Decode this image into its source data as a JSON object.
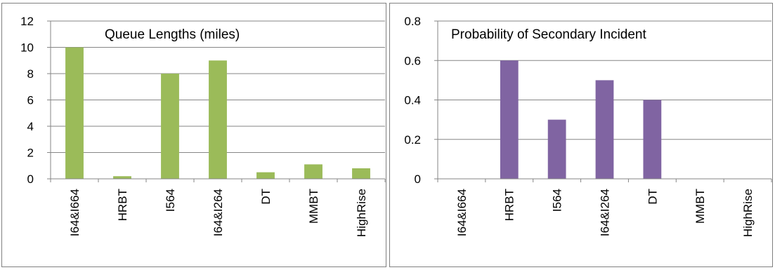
{
  "chart_data": [
    {
      "type": "bar",
      "title": "Queue Lengths (miles)",
      "categories": [
        "I64&I664",
        "HRBT",
        "I564",
        "I64&I264",
        "DT",
        "MMBT",
        "HighRise"
      ],
      "values": [
        10,
        0.2,
        8,
        9,
        0.5,
        1.1,
        0.8
      ],
      "ylim": [
        0,
        12
      ],
      "yticks": [
        "0",
        "2",
        "4",
        "6",
        "8",
        "10",
        "12"
      ],
      "grid": true,
      "color": "#9bbb59"
    },
    {
      "type": "bar",
      "title": "Probability of Secondary Incident",
      "categories": [
        "I64&I664",
        "HRBT",
        "I564",
        "I64&I264",
        "DT",
        "MMBT",
        "HighRise"
      ],
      "values": [
        0,
        0.6,
        0.3,
        0.5,
        0.4,
        0,
        0
      ],
      "ylim": [
        0,
        0.8
      ],
      "yticks": [
        "0",
        "0.2",
        "0.4",
        "0.6",
        "0.8"
      ],
      "grid": true,
      "color": "#8064a2"
    }
  ]
}
